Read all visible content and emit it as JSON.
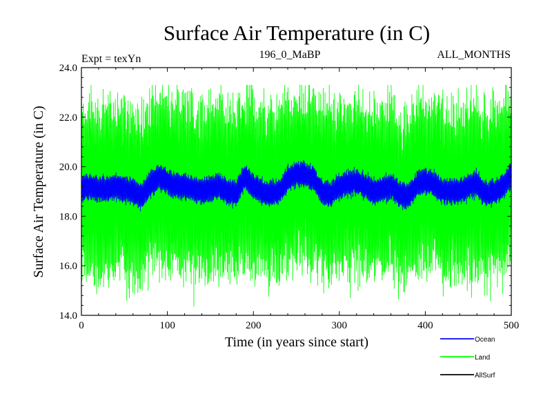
{
  "chart_data": {
    "type": "line",
    "title": "Surface Air Temperature (in C)",
    "subtitle_left": "Expt = texYn",
    "subtitle_center": "196_0_MaBP",
    "subtitle_right": "ALL_MONTHS",
    "xlabel": "Time (in years since start)",
    "ylabel": "Surface Air Temperature (in C)",
    "xlim": [
      0,
      500
    ],
    "ylim": [
      14.0,
      24.0
    ],
    "x_ticks": [
      0,
      100,
      200,
      300,
      400,
      500
    ],
    "x_tick_labels": [
      "0",
      "100",
      "200",
      "300",
      "400",
      "500"
    ],
    "y_ticks": [
      14.0,
      16.0,
      18.0,
      20.0,
      22.0,
      24.0
    ],
    "y_tick_labels": [
      "14.0",
      "16.0",
      "18.0",
      "20.0",
      "22.0",
      "24.0"
    ],
    "grid": false,
    "legend_position": "bottom-right outside",
    "series": [
      {
        "name": "Land",
        "color": "#00ff00",
        "mean_curve": {
          "x": [
            0,
            10,
            20,
            30,
            40,
            50,
            60,
            70,
            80,
            90,
            100,
            110,
            120,
            130,
            140,
            150,
            160,
            170,
            180,
            190,
            200,
            210,
            220,
            230,
            240,
            250,
            260,
            270,
            280,
            290,
            300,
            310,
            320,
            330,
            340,
            350,
            360,
            370,
            380,
            390,
            400,
            410,
            420,
            430,
            440,
            450,
            460,
            470,
            480,
            490,
            500
          ],
          "y": [
            19.0,
            19.1,
            19.0,
            19.0,
            19.2,
            19.1,
            19.0,
            18.8,
            19.3,
            19.5,
            19.4,
            19.2,
            19.2,
            19.1,
            19.0,
            19.1,
            19.2,
            19.0,
            18.9,
            19.6,
            19.2,
            19.0,
            18.9,
            19.0,
            19.5,
            19.6,
            19.6,
            19.5,
            19.0,
            18.9,
            19.2,
            19.3,
            19.4,
            19.2,
            19.0,
            19.1,
            19.2,
            18.9,
            18.8,
            19.3,
            19.4,
            19.3,
            19.0,
            19.0,
            19.0,
            19.2,
            19.3,
            18.9,
            19.0,
            19.2,
            19.6
          ]
        },
        "min": 14.3,
        "max": 23.3,
        "typical_range": [
          15.5,
          22.5
        ]
      },
      {
        "name": "Ocean",
        "color": "#0000ff",
        "mean_curve": {
          "x": [
            0,
            10,
            20,
            30,
            40,
            50,
            60,
            70,
            80,
            90,
            100,
            110,
            120,
            130,
            140,
            150,
            160,
            170,
            180,
            190,
            200,
            210,
            220,
            230,
            240,
            250,
            260,
            270,
            280,
            290,
            300,
            310,
            320,
            330,
            340,
            350,
            360,
            370,
            380,
            390,
            400,
            410,
            420,
            430,
            440,
            450,
            460,
            470,
            480,
            490,
            500
          ],
          "y": [
            19.1,
            19.2,
            19.1,
            19.1,
            19.2,
            19.1,
            19.0,
            18.8,
            19.3,
            19.6,
            19.4,
            19.2,
            19.2,
            19.1,
            19.0,
            19.1,
            19.2,
            19.0,
            18.9,
            19.6,
            19.2,
            19.0,
            18.9,
            19.0,
            19.5,
            19.7,
            19.7,
            19.5,
            19.0,
            18.9,
            19.2,
            19.3,
            19.4,
            19.2,
            19.0,
            19.1,
            19.2,
            18.9,
            18.8,
            19.3,
            19.4,
            19.3,
            19.0,
            19.0,
            19.0,
            19.2,
            19.3,
            18.9,
            19.0,
            19.2,
            19.7
          ]
        },
        "typical_range": [
          18.7,
          19.7
        ]
      },
      {
        "name": "AllSurf",
        "color": "#000000"
      }
    ]
  }
}
